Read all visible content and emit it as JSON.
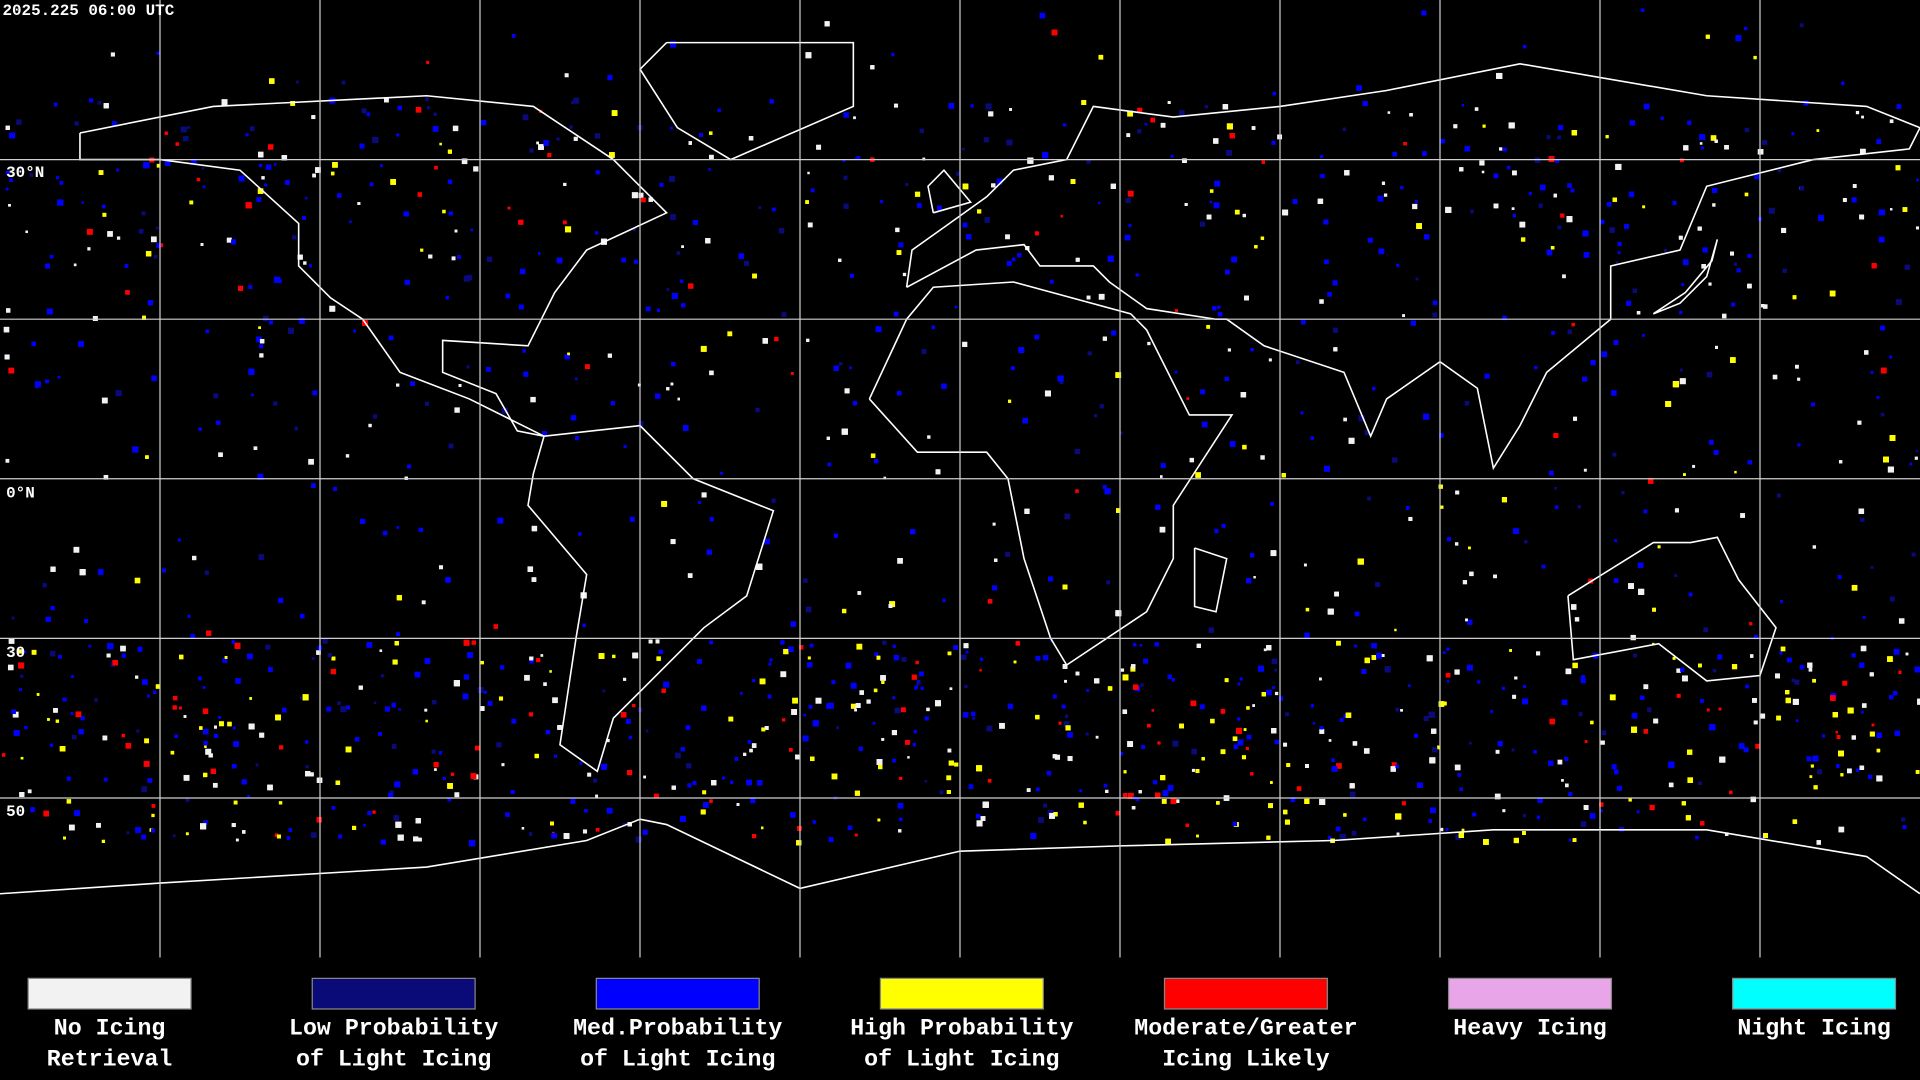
{
  "map": {
    "timestamp": "2025.225 06:00 UTC",
    "latitude_labels": [
      "30°N",
      "0°N",
      "30",
      "50"
    ],
    "legend": [
      {
        "label": [
          "No Icing",
          "Retrieval"
        ],
        "color": "#f2f2f2"
      },
      {
        "label": [
          "Low Probability",
          "of Light Icing"
        ],
        "color": "#0a0a78"
      },
      {
        "label": [
          "Med.Probability",
          "of Light Icing"
        ],
        "color": "#0000ff"
      },
      {
        "label": [
          "High Probability",
          "of Light Icing"
        ],
        "color": "#ffff00"
      },
      {
        "label": [
          "Moderate/Greater",
          "Icing Likely"
        ],
        "color": "#ff0000"
      },
      {
        "label": [
          "Heavy Icing",
          ""
        ],
        "color": "#e8a6e8"
      },
      {
        "label": [
          "Night Icing",
          ""
        ],
        "color": "#00ffff"
      }
    ]
  }
}
